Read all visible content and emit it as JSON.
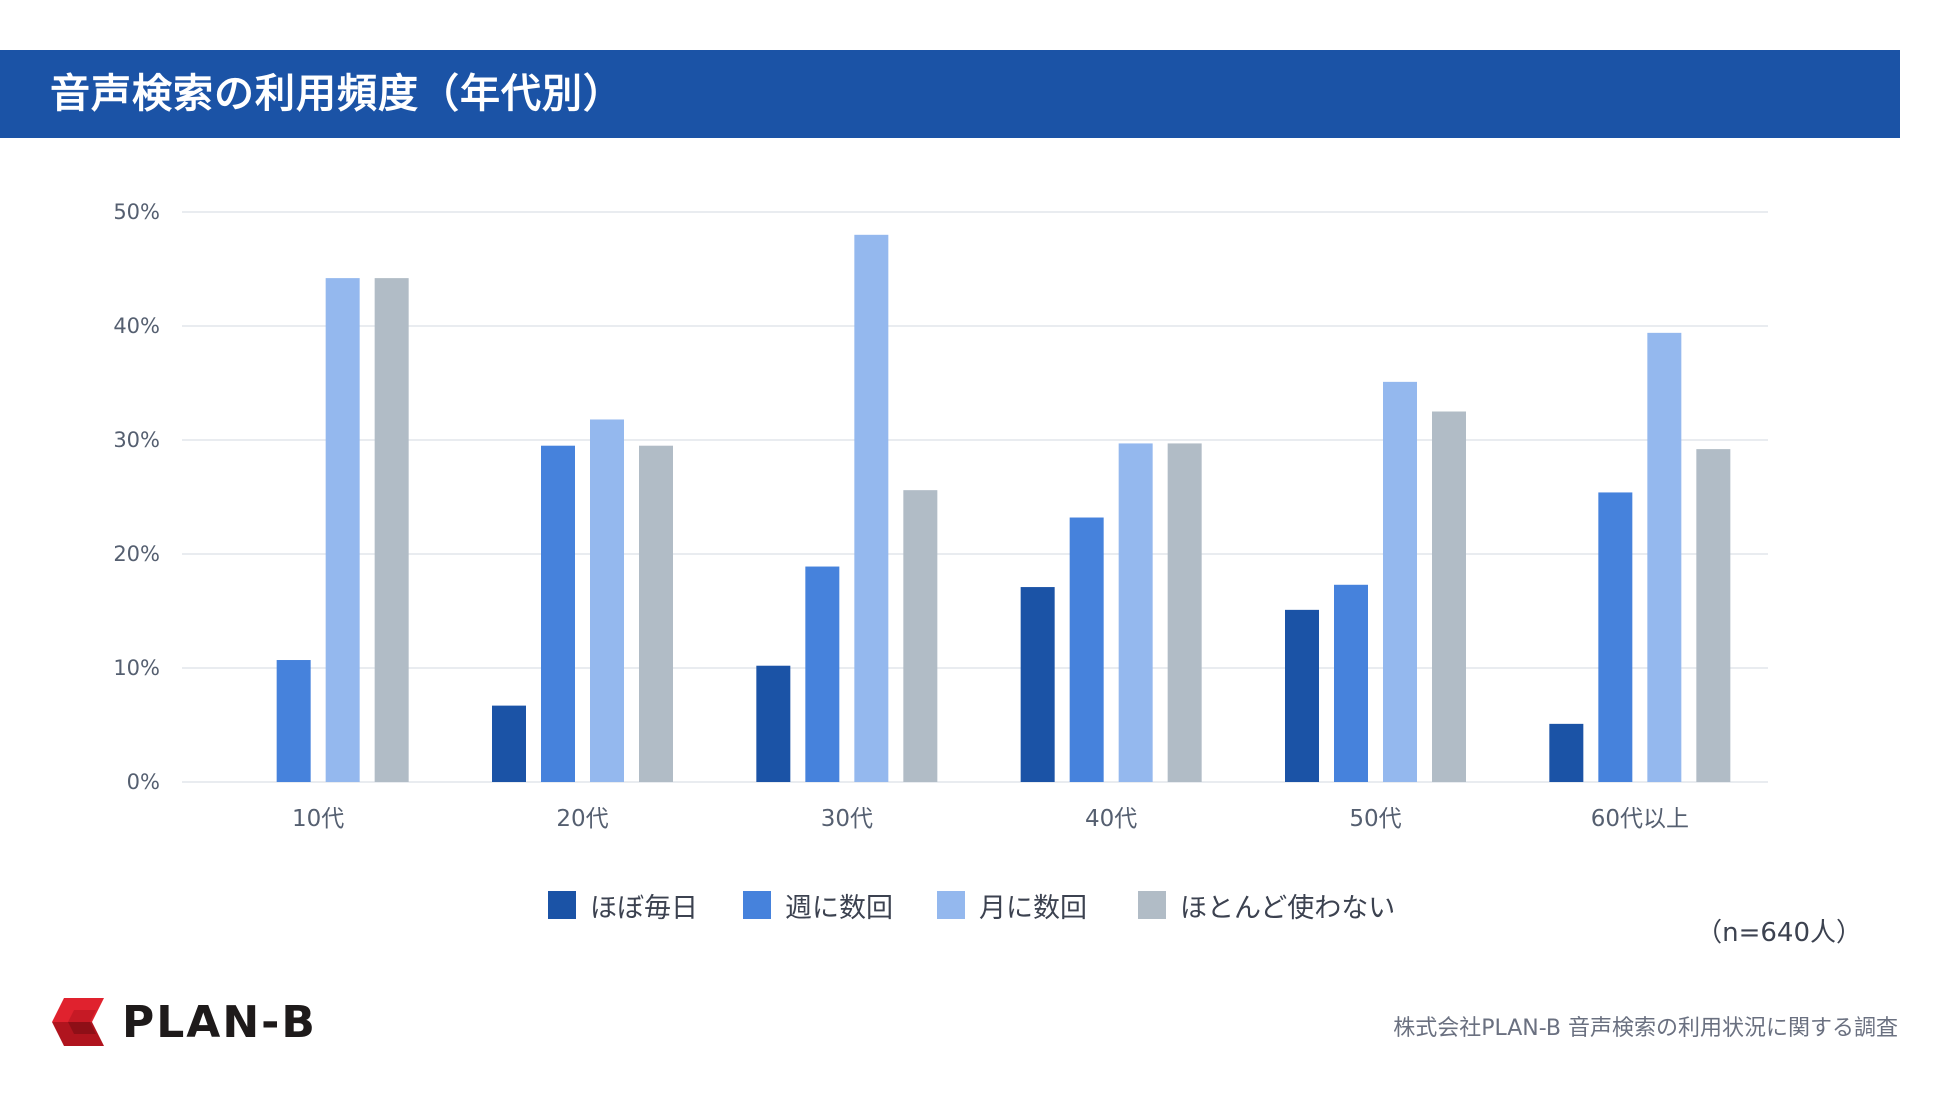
{
  "header": {
    "title": "音声検索の利用頻度（年代別）"
  },
  "colors": {
    "title_bg": "#1b53a6",
    "series": [
      "#1b53a6",
      "#4682dc",
      "#94b8ee",
      "#b1bcc6"
    ],
    "grid": "#e2e6ec",
    "axis_text": "#555f70"
  },
  "chart_data": {
    "type": "bar",
    "title": "音声検索の利用頻度（年代別）",
    "xlabel": "",
    "ylabel": "",
    "ylim": [
      0,
      50
    ],
    "yticks": [
      0,
      10,
      20,
      30,
      40,
      50
    ],
    "ytick_labels": [
      "0%",
      "10%",
      "20%",
      "30%",
      "40%",
      "50%"
    ],
    "grid": true,
    "legend_position": "bottom",
    "categories": [
      "10代",
      "20代",
      "30代",
      "40代",
      "50代",
      "60代以上"
    ],
    "series": [
      {
        "name": "ほぼ毎日",
        "values": [
          0,
          6.7,
          10.2,
          17.1,
          15.1,
          5.1
        ]
      },
      {
        "name": "週に数回",
        "values": [
          10.7,
          29.5,
          18.9,
          23.2,
          17.3,
          25.4
        ]
      },
      {
        "name": "月に数回",
        "values": [
          44.2,
          31.8,
          48.0,
          29.7,
          35.1,
          39.4
        ]
      },
      {
        "name": "ほとんど使わない",
        "values": [
          44.2,
          29.5,
          25.6,
          29.7,
          32.5,
          29.2
        ]
      }
    ]
  },
  "notes": {
    "sample": "（n=640人）",
    "source": "株式会社PLAN-B  音声検索の利用状況に関する調査"
  },
  "logo": {
    "text": "PLAN-B"
  }
}
